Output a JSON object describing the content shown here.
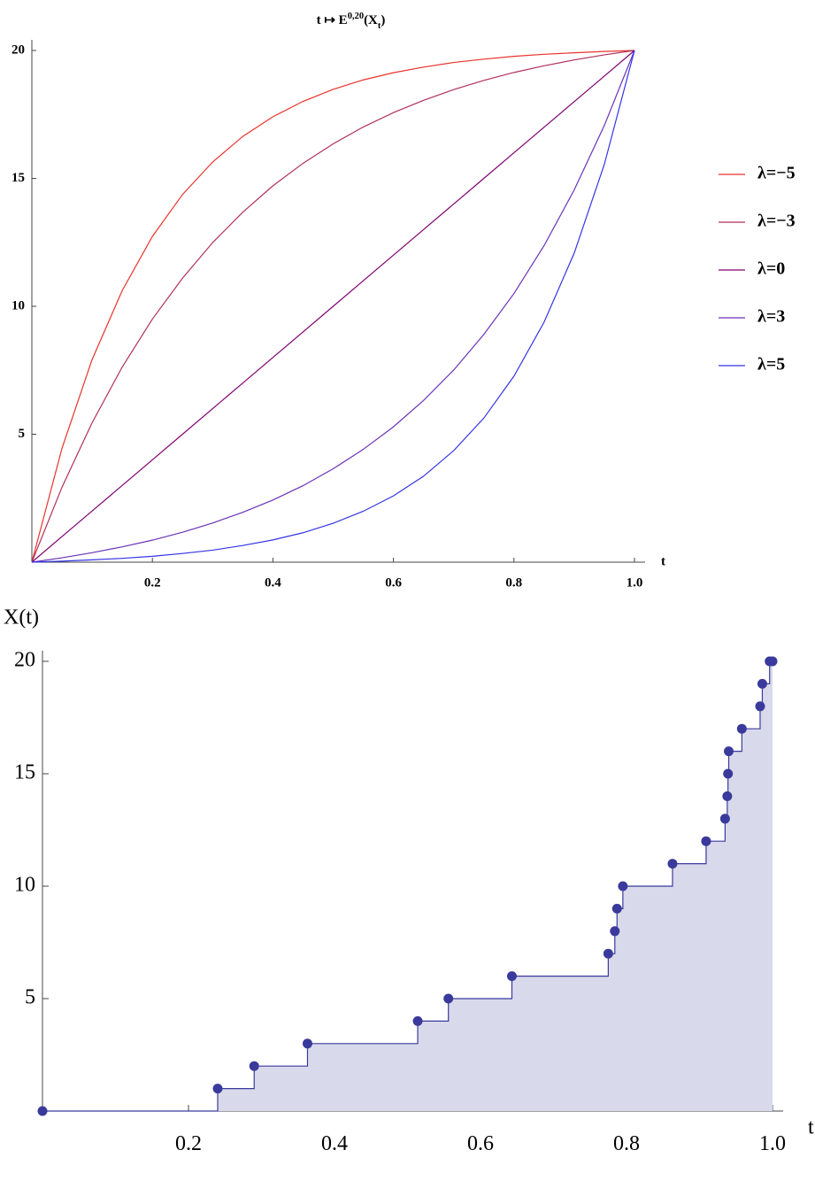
{
  "chart_data": [
    {
      "type": "line",
      "title": [
        "t ↦ E",
        "0,20",
        "(X",
        "t",
        ")"
      ],
      "x_label": "t",
      "x": [
        0,
        0.05,
        0.1,
        0.15,
        0.2,
        0.25,
        0.3,
        0.35,
        0.4,
        0.45,
        0.5,
        0.55,
        0.6,
        0.65,
        0.7,
        0.75,
        0.8,
        0.85,
        0.9,
        0.95,
        1
      ],
      "series": [
        {
          "name": "λ=−5",
          "color": "#e8322c",
          "values": [
            0,
            4.45,
            7.92,
            10.62,
            12.73,
            14.37,
            15.64,
            16.64,
            17.41,
            18.01,
            18.48,
            18.85,
            19.13,
            19.35,
            19.53,
            19.66,
            19.77,
            19.85,
            19.91,
            19.96,
            20
          ]
        },
        {
          "name": "λ=−3",
          "color": "#b0305a",
          "values": [
            0,
            2.93,
            5.45,
            7.63,
            9.5,
            11.1,
            12.49,
            13.68,
            14.71,
            15.59,
            16.35,
            17.01,
            17.57,
            18.05,
            18.47,
            18.83,
            19.14,
            19.4,
            19.63,
            19.83,
            20
          ]
        },
        {
          "name": "λ=0",
          "color": "#800070",
          "values": [
            0,
            1,
            2,
            3,
            4,
            5,
            6,
            7,
            8,
            9,
            10,
            11,
            12,
            13,
            14,
            15,
            16,
            17,
            18,
            19,
            20
          ]
        },
        {
          "name": "λ=3",
          "color": "#6a32b8",
          "values": [
            0,
            0.17,
            0.37,
            0.6,
            0.86,
            1.17,
            1.53,
            1.95,
            2.43,
            2.99,
            3.65,
            4.41,
            5.29,
            6.32,
            7.51,
            8.9,
            10.5,
            12.37,
            14.55,
            17.07,
            20
          ]
        },
        {
          "name": "λ=5",
          "color": "#3434e6",
          "values": [
            0,
            0.04,
            0.09,
            0.15,
            0.23,
            0.34,
            0.47,
            0.65,
            0.87,
            1.15,
            1.52,
            1.99,
            2.59,
            3.36,
            4.36,
            5.63,
            7.27,
            9.38,
            12.08,
            15.55,
            20
          ]
        }
      ],
      "xlim": [
        0,
        1
      ],
      "xticks": [
        0.2,
        0.4,
        0.6,
        0.8,
        {
          "value": 1,
          "label": "1.0"
        }
      ],
      "ylim": [
        0,
        20
      ],
      "yticks": [
        5,
        10,
        15,
        20
      ],
      "legend": "right"
    },
    {
      "type": "step",
      "x_label": "t",
      "y_label": "X(t)",
      "x": [
        0,
        0.24,
        0.29,
        0.363,
        0.514,
        0.556,
        0.643,
        0.775,
        0.784,
        0.787,
        0.795,
        0.863,
        0.909,
        0.935,
        0.938,
        0.939,
        0.94,
        0.958,
        0.983,
        0.986,
        0.996,
        1
      ],
      "values": [
        0,
        1,
        2,
        3,
        4,
        5,
        6,
        7,
        8,
        9,
        10,
        11,
        12,
        13,
        14,
        15,
        16,
        17,
        18,
        19,
        20,
        20
      ],
      "color": "#3a3a9c",
      "fill": "#d9d9ec",
      "xlim": [
        0,
        1
      ],
      "xticks": [
        0.2,
        0.4,
        0.6,
        0.8,
        {
          "value": 1,
          "label": "1.0"
        }
      ],
      "ylim": [
        0,
        20
      ],
      "yticks": [
        5,
        10,
        15,
        20
      ]
    }
  ]
}
